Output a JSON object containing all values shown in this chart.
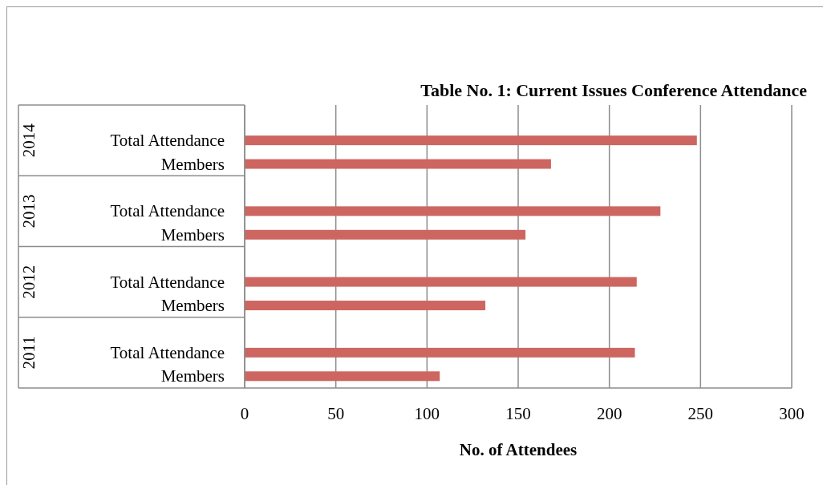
{
  "chart_data": {
    "type": "bar",
    "orientation": "horizontal",
    "title": "Table No. 1:  Current Issues Conference Attendance",
    "xlabel": "No. of Attendees",
    "categories": [
      "Total Attendance",
      "Members",
      "Total Attendance",
      "Members",
      "Total Attendance",
      "Members",
      "Total Attendance",
      "Members"
    ],
    "series": [
      {
        "color": "#cd6660",
        "values": [
          248,
          168,
          228,
          154,
          215,
          132,
          214,
          107
        ]
      }
    ],
    "xlim": [
      0,
      300
    ],
    "xticks": [
      0,
      50,
      100,
      150,
      200,
      250,
      300
    ],
    "grid": "x",
    "annotations": [
      "2014",
      "2013",
      "2012",
      "2011"
    ]
  }
}
